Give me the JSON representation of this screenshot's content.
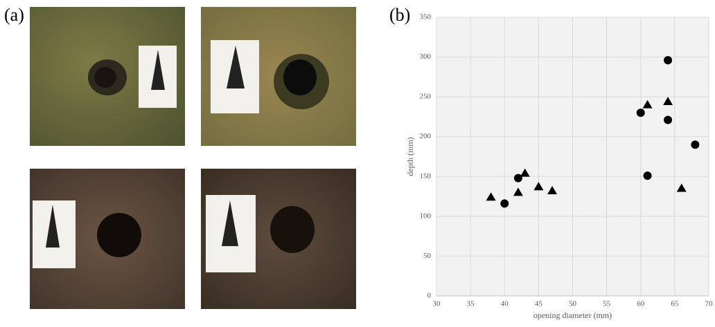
{
  "panel_labels": [
    "(a)",
    "(b)"
  ],
  "chart_data": {
    "type": "scatter",
    "x_label": "opening diameter (mm)",
    "y_label": "depth (mm)",
    "xlim": [
      30,
      70
    ],
    "xticks": [
      30,
      35,
      40,
      45,
      50,
      55,
      60,
      65,
      70
    ],
    "ylim": [
      0,
      350
    ],
    "yticks": [
      0,
      50,
      100,
      150,
      200,
      250,
      300,
      350
    ],
    "grid": true,
    "background": "#f2f2f2",
    "series": [
      {
        "marker": "circle",
        "color": "#000000",
        "x": [
          40,
          42,
          60,
          61,
          64,
          64,
          68
        ],
        "values": [
          116,
          148,
          230,
          151,
          296,
          221,
          190
        ]
      },
      {
        "marker": "triangle",
        "color": "#000000",
        "x": [
          38,
          42,
          43,
          45,
          47,
          61,
          64,
          66
        ],
        "values": [
          124,
          130,
          154,
          137,
          132,
          240,
          244,
          135
        ]
      }
    ]
  }
}
